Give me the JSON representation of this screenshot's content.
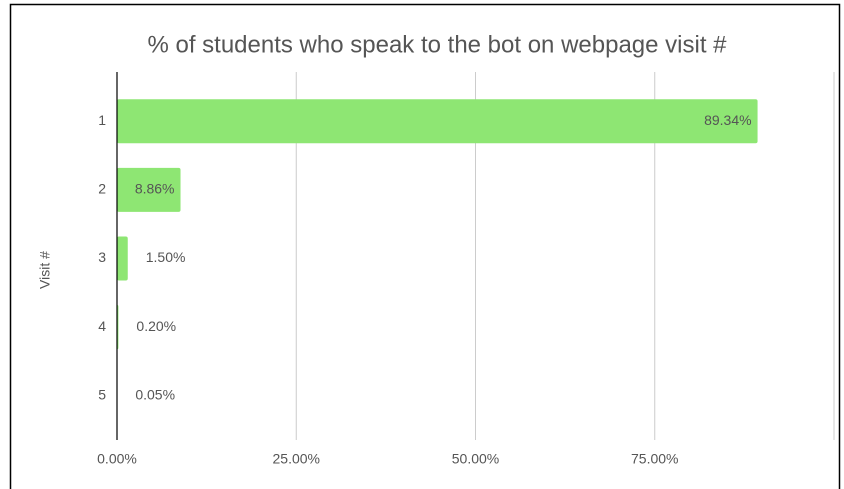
{
  "chart_data": {
    "type": "bar",
    "orientation": "horizontal",
    "title": "% of students who speak to the bot on webpage visit #",
    "y_label": "Visit #",
    "categories": [
      "1",
      "2",
      "3",
      "4",
      "5"
    ],
    "values": [
      89.34,
      8.86,
      1.5,
      0.2,
      0.05
    ],
    "value_labels": [
      "89.34%",
      "8.86%",
      "1.50%",
      "0.20%",
      "0.05%"
    ],
    "color": "#8ee673",
    "xlim": [
      0,
      100
    ],
    "xticks": [
      {
        "value": 0,
        "label": "0.00%"
      },
      {
        "value": 25,
        "label": "25.00%"
      },
      {
        "value": 50,
        "label": "50.00%"
      },
      {
        "value": 75,
        "label": "75.00%"
      }
    ],
    "grid": true
  }
}
